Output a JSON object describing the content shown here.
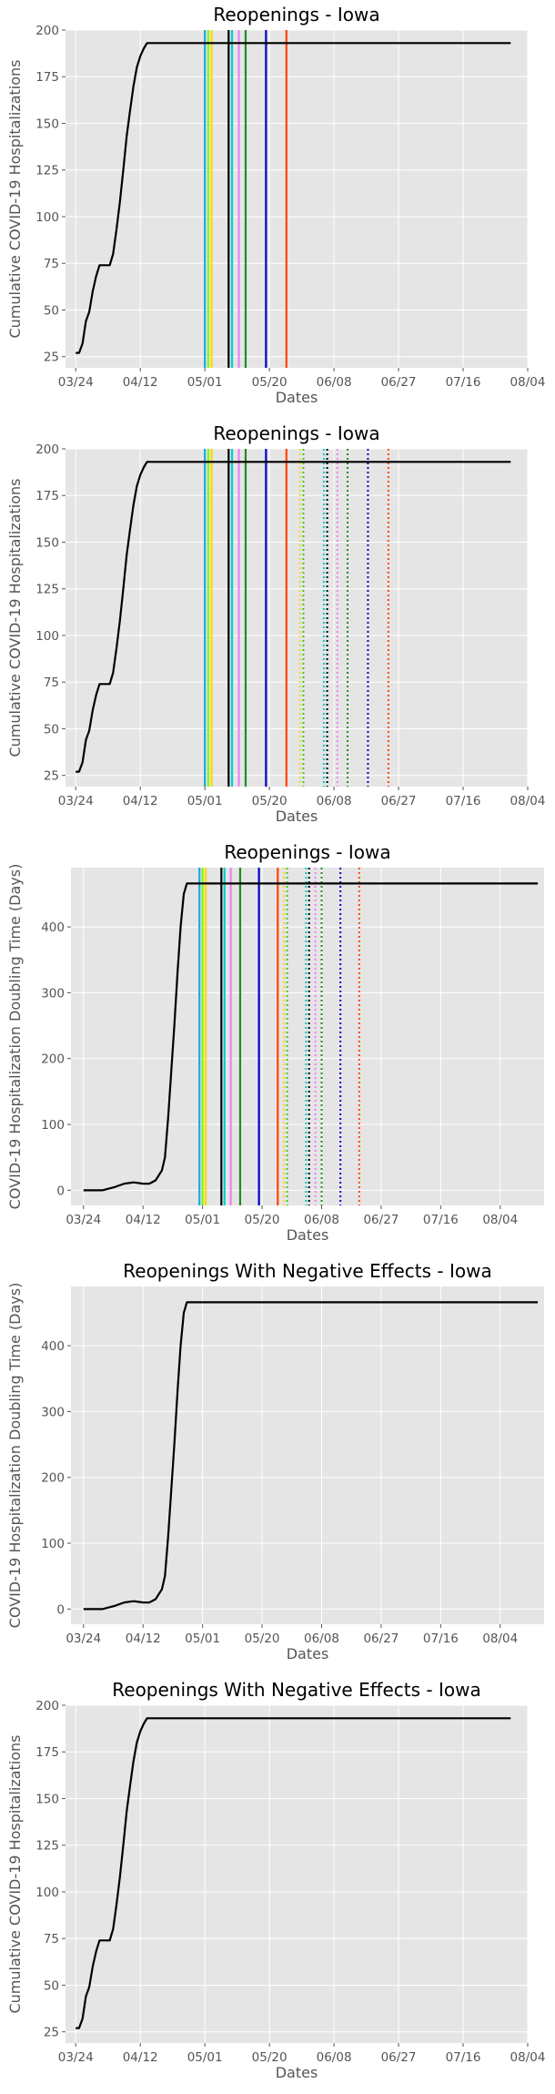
{
  "chart_data": [
    {
      "type": "line",
      "title": "Reopenings - Iowa",
      "xlabel": "Dates",
      "ylabel": "Cumulative COVID-19 Hospitalizations",
      "x_ticks": [
        "03/24",
        "04/12",
        "05/01",
        "05/20",
        "06/08",
        "06/27",
        "07/16",
        "08/04"
      ],
      "y_ticks": [
        25,
        50,
        75,
        100,
        125,
        150,
        175,
        200
      ],
      "xlim": [
        "2020-03-21",
        "2020-08-04"
      ],
      "ylim": [
        19,
        200
      ],
      "grid": true,
      "series": [
        {
          "color": "#000000",
          "x": [
            "2020-03-24",
            "2020-03-25",
            "2020-03-26",
            "2020-03-27",
            "2020-03-28",
            "2020-03-29",
            "2020-03-30",
            "2020-03-31",
            "2020-04-01",
            "2020-04-02",
            "2020-04-03",
            "2020-04-04",
            "2020-04-05",
            "2020-04-06",
            "2020-04-07",
            "2020-04-08",
            "2020-04-09",
            "2020-04-10",
            "2020-04-11",
            "2020-04-12",
            "2020-04-13",
            "2020-04-14",
            "2020-04-15",
            "2020-07-30"
          ],
          "y": [
            27,
            27,
            32,
            44,
            49,
            60,
            68,
            74,
            74,
            74,
            74,
            80,
            93,
            108,
            125,
            143,
            157,
            170,
            180,
            186,
            190,
            193,
            193,
            193
          ]
        }
      ],
      "vlines": [
        {
          "date": "2020-05-01",
          "color": "#1aa9e8",
          "style": "solid"
        },
        {
          "date": "2020-05-02",
          "color": "#7cfc00",
          "style": "solid"
        },
        {
          "date": "2020-05-03",
          "color": "#ffd700",
          "style": "solid"
        },
        {
          "date": "2020-05-08",
          "color": "#000000",
          "style": "solid"
        },
        {
          "date": "2020-05-09",
          "color": "#00ced1",
          "style": "solid"
        },
        {
          "date": "2020-05-11",
          "color": "#ee82ee",
          "style": "solid"
        },
        {
          "date": "2020-05-13",
          "color": "#228b22",
          "style": "solid"
        },
        {
          "date": "2020-05-19",
          "color": "#0000cd",
          "style": "solid"
        },
        {
          "date": "2020-05-25",
          "color": "#ff4500",
          "style": "solid"
        }
      ]
    },
    {
      "type": "line",
      "title": "Reopenings - Iowa",
      "xlabel": "Dates",
      "ylabel": "Cumulative COVID-19 Hospitalizations",
      "x_ticks": [
        "03/24",
        "04/12",
        "05/01",
        "05/20",
        "06/08",
        "06/27",
        "07/16",
        "08/04"
      ],
      "y_ticks": [
        25,
        50,
        75,
        100,
        125,
        150,
        175,
        200
      ],
      "xlim": [
        "2020-03-21",
        "2020-08-04"
      ],
      "ylim": [
        19,
        200
      ],
      "grid": true,
      "series": [
        {
          "color": "#000000",
          "x": [
            "2020-03-24",
            "2020-03-25",
            "2020-03-26",
            "2020-03-27",
            "2020-03-28",
            "2020-03-29",
            "2020-03-30",
            "2020-03-31",
            "2020-04-01",
            "2020-04-02",
            "2020-04-03",
            "2020-04-04",
            "2020-04-05",
            "2020-04-06",
            "2020-04-07",
            "2020-04-08",
            "2020-04-09",
            "2020-04-10",
            "2020-04-11",
            "2020-04-12",
            "2020-04-13",
            "2020-04-14",
            "2020-04-15",
            "2020-07-30"
          ],
          "y": [
            27,
            27,
            32,
            44,
            49,
            60,
            68,
            74,
            74,
            74,
            74,
            80,
            93,
            108,
            125,
            143,
            157,
            170,
            180,
            186,
            190,
            193,
            193,
            193
          ]
        }
      ],
      "vlines": [
        {
          "date": "2020-05-01",
          "color": "#1aa9e8",
          "style": "solid"
        },
        {
          "date": "2020-05-02",
          "color": "#7cfc00",
          "style": "solid"
        },
        {
          "date": "2020-05-03",
          "color": "#ffd700",
          "style": "solid"
        },
        {
          "date": "2020-05-08",
          "color": "#000000",
          "style": "solid"
        },
        {
          "date": "2020-05-09",
          "color": "#00ced1",
          "style": "solid"
        },
        {
          "date": "2020-05-11",
          "color": "#ee82ee",
          "style": "solid"
        },
        {
          "date": "2020-05-13",
          "color": "#228b22",
          "style": "solid"
        },
        {
          "date": "2020-05-19",
          "color": "#0000cd",
          "style": "solid"
        },
        {
          "date": "2020-05-25",
          "color": "#ff4500",
          "style": "solid"
        },
        {
          "date": "2020-05-29",
          "color": "#ffd700",
          "style": "dotted"
        },
        {
          "date": "2020-05-30",
          "color": "#32cd32",
          "style": "dotted"
        },
        {
          "date": "2020-06-05",
          "color": "#00ced1",
          "style": "dotted"
        },
        {
          "date": "2020-06-06",
          "color": "#000000",
          "style": "dotted"
        },
        {
          "date": "2020-06-09",
          "color": "#ee82ee",
          "style": "dotted"
        },
        {
          "date": "2020-06-12",
          "color": "#228b22",
          "style": "dotted"
        },
        {
          "date": "2020-06-18",
          "color": "#0000cd",
          "style": "dotted"
        },
        {
          "date": "2020-06-24",
          "color": "#ff4500",
          "style": "dotted"
        }
      ]
    },
    {
      "type": "line",
      "title": "Reopenings - Iowa",
      "xlabel": "Dates",
      "ylabel": "COVID-19 Hospitalization Doubling Time (Days)",
      "x_ticks": [
        "03/24",
        "04/12",
        "05/01",
        "05/20",
        "06/08",
        "06/27",
        "07/16",
        "08/04"
      ],
      "y_ticks": [
        0,
        100,
        200,
        300,
        400
      ],
      "xlim": [
        "2020-03-20",
        "2020-08-18"
      ],
      "ylim": [
        -23,
        490
      ],
      "grid": true,
      "series": [
        {
          "color": "#000000",
          "x": [
            "2020-03-24",
            "2020-03-30",
            "2020-04-03",
            "2020-04-06",
            "2020-04-09",
            "2020-04-12",
            "2020-04-14",
            "2020-04-16",
            "2020-04-18",
            "2020-04-19",
            "2020-04-20",
            "2020-04-21",
            "2020-04-22",
            "2020-04-23",
            "2020-04-24",
            "2020-04-25",
            "2020-04-26",
            "2020-04-27",
            "2020-04-28",
            "2020-04-29",
            "2020-08-16"
          ],
          "y": [
            0,
            0,
            5,
            10,
            12,
            10,
            10,
            15,
            30,
            50,
            110,
            180,
            250,
            330,
            400,
            450,
            466,
            466,
            466,
            466,
            466
          ]
        }
      ],
      "vlines": [
        {
          "date": "2020-04-30",
          "color": "#1aa9e8",
          "style": "solid"
        },
        {
          "date": "2020-05-01",
          "color": "#7cfc00",
          "style": "solid"
        },
        {
          "date": "2020-05-02",
          "color": "#ffd700",
          "style": "solid"
        },
        {
          "date": "2020-05-07",
          "color": "#000000",
          "style": "solid"
        },
        {
          "date": "2020-05-08",
          "color": "#00ced1",
          "style": "solid"
        },
        {
          "date": "2020-05-10",
          "color": "#ee82ee",
          "style": "solid"
        },
        {
          "date": "2020-05-13",
          "color": "#228b22",
          "style": "solid"
        },
        {
          "date": "2020-05-19",
          "color": "#0000cd",
          "style": "solid"
        },
        {
          "date": "2020-05-25",
          "color": "#ff4500",
          "style": "solid"
        },
        {
          "date": "2020-05-27",
          "color": "#ffd700",
          "style": "dotted"
        },
        {
          "date": "2020-05-28",
          "color": "#32cd32",
          "style": "dotted"
        },
        {
          "date": "2020-06-03",
          "color": "#00ced1",
          "style": "dotted"
        },
        {
          "date": "2020-06-04",
          "color": "#000000",
          "style": "dotted"
        },
        {
          "date": "2020-06-06",
          "color": "#ee82ee",
          "style": "dotted"
        },
        {
          "date": "2020-06-08",
          "color": "#228b22",
          "style": "dotted"
        },
        {
          "date": "2020-06-14",
          "color": "#0000cd",
          "style": "dotted"
        },
        {
          "date": "2020-06-20",
          "color": "#ff4500",
          "style": "dotted"
        }
      ]
    },
    {
      "type": "line",
      "title": "Reopenings With Negative Effects - Iowa",
      "xlabel": "Dates",
      "ylabel": "COVID-19 Hospitalization Doubling Time (Days)",
      "x_ticks": [
        "03/24",
        "04/12",
        "05/01",
        "05/20",
        "06/08",
        "06/27",
        "07/16",
        "08/04"
      ],
      "y_ticks": [
        0,
        100,
        200,
        300,
        400
      ],
      "xlim": [
        "2020-03-20",
        "2020-08-18"
      ],
      "ylim": [
        -23,
        490
      ],
      "grid": true,
      "series": [
        {
          "color": "#000000",
          "x": [
            "2020-03-24",
            "2020-03-30",
            "2020-04-03",
            "2020-04-06",
            "2020-04-09",
            "2020-04-12",
            "2020-04-14",
            "2020-04-16",
            "2020-04-18",
            "2020-04-19",
            "2020-04-20",
            "2020-04-21",
            "2020-04-22",
            "2020-04-23",
            "2020-04-24",
            "2020-04-25",
            "2020-04-26",
            "2020-04-27",
            "2020-04-28",
            "2020-04-29",
            "2020-08-16"
          ],
          "y": [
            0,
            0,
            5,
            10,
            12,
            10,
            10,
            15,
            30,
            50,
            110,
            180,
            250,
            330,
            400,
            450,
            466,
            466,
            466,
            466,
            466
          ]
        }
      ],
      "vlines": []
    },
    {
      "type": "line",
      "title": "Reopenings With Negative Effects - Iowa",
      "xlabel": "Dates",
      "ylabel": "Cumulative COVID-19 Hospitalizations",
      "x_ticks": [
        "03/24",
        "04/12",
        "05/01",
        "05/20",
        "06/08",
        "06/27",
        "07/16",
        "08/04"
      ],
      "y_ticks": [
        25,
        50,
        75,
        100,
        125,
        150,
        175,
        200
      ],
      "xlim": [
        "2020-03-21",
        "2020-08-04"
      ],
      "ylim": [
        19,
        200
      ],
      "grid": true,
      "series": [
        {
          "color": "#000000",
          "x": [
            "2020-03-24",
            "2020-03-25",
            "2020-03-26",
            "2020-03-27",
            "2020-03-28",
            "2020-03-29",
            "2020-03-30",
            "2020-03-31",
            "2020-04-01",
            "2020-04-02",
            "2020-04-03",
            "2020-04-04",
            "2020-04-05",
            "2020-04-06",
            "2020-04-07",
            "2020-04-08",
            "2020-04-09",
            "2020-04-10",
            "2020-04-11",
            "2020-04-12",
            "2020-04-13",
            "2020-04-14",
            "2020-04-15",
            "2020-07-30"
          ],
          "y": [
            27,
            27,
            32,
            44,
            49,
            60,
            68,
            74,
            74,
            74,
            74,
            80,
            93,
            108,
            125,
            143,
            157,
            170,
            180,
            186,
            190,
            193,
            193,
            193
          ]
        }
      ],
      "vlines": []
    }
  ]
}
